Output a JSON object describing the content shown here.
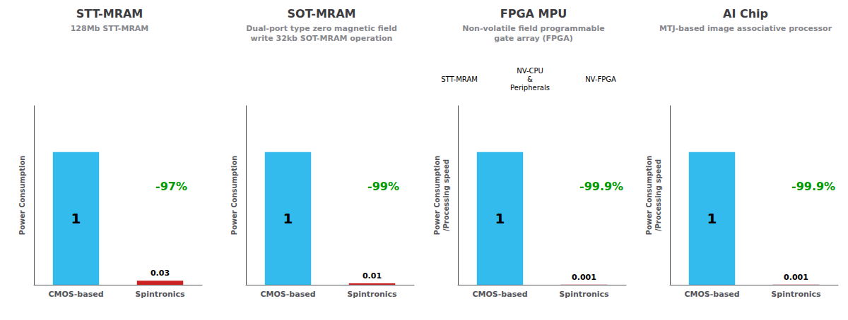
{
  "chart_data": [
    {
      "type": "bar",
      "title": "STT-MRAM",
      "subtitle": "128Mb STT-MRAM",
      "categories": [
        "CMOS-based",
        "Spintronics"
      ],
      "values": [
        1,
        0.03
      ],
      "colors": [
        "#33bbee",
        "#cc2222"
      ],
      "ylabel": "Power Consumption",
      "ylim": [
        0,
        1.35
      ],
      "tick_labels": "x",
      "data_labels": true,
      "grid": false,
      "annotation": {
        "text": "-97%",
        "color": "#009900"
      }
    },
    {
      "type": "bar",
      "title": "SOT-MRAM",
      "subtitle": "Dual-port type zero magnetic field\nwrite 32kb SOT-MRAM operation",
      "categories": [
        "CMOS-based",
        "Spintronics"
      ],
      "values": [
        1,
        0.01
      ],
      "colors": [
        "#33bbee",
        "#cc2222"
      ],
      "ylabel": "Power Consumption",
      "ylim": [
        0,
        1.35
      ],
      "tick_labels": "x",
      "data_labels": true,
      "grid": false,
      "annotation": {
        "text": "-99%",
        "color": "#009900"
      }
    },
    {
      "type": "bar",
      "title": "FPGA MPU",
      "subtitle": "Non-volatile field programmable\ngate array (FPGA)",
      "categories": [
        "CMOS-based",
        "Spintronics"
      ],
      "values": [
        1,
        0.001
      ],
      "colors": [
        "#33bbee",
        "#cc2222"
      ],
      "ylabel": "Power Consumption\n/Processing speed",
      "ylim": [
        0,
        1.35
      ],
      "tick_labels": "x",
      "data_labels": true,
      "grid": false,
      "annotation": {
        "text": "-99.9%",
        "color": "#009900"
      },
      "image_labels": [
        "STT-MRAM",
        "NV-CPU\n&\nPeripherals",
        "NV-FPGA"
      ]
    },
    {
      "type": "bar",
      "title": "AI Chip",
      "subtitle": "MTJ-based image associative processor",
      "categories": [
        "CMOS-based",
        "Spintronics"
      ],
      "values": [
        1,
        0.001
      ],
      "colors": [
        "#33bbee",
        "#cc2222"
      ],
      "ylabel": "Power Consumption\n/Processing speed",
      "ylim": [
        0,
        1.35
      ],
      "tick_labels": "x",
      "data_labels": true,
      "grid": false,
      "annotation": {
        "text": "-99.9%",
        "color": "#009900"
      }
    }
  ]
}
